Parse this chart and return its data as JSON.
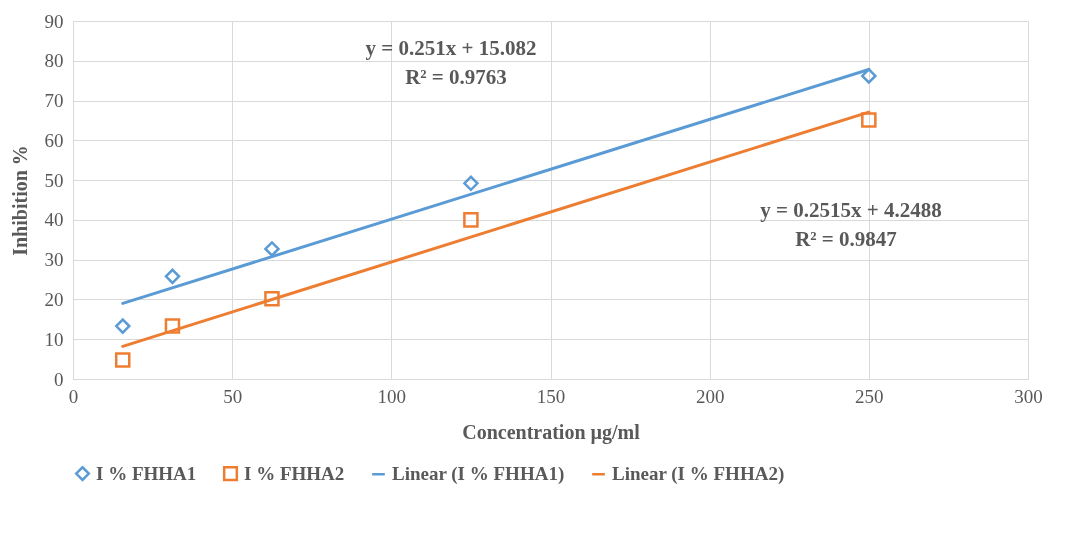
{
  "chart_data": {
    "type": "scatter",
    "xlabel": "Concentration µg/ml",
    "ylabel": "Inhibition %",
    "xlim": [
      0,
      300
    ],
    "xticks": [
      0,
      50,
      100,
      150,
      200,
      250,
      300
    ],
    "ylim": [
      0,
      90
    ],
    "yticks": [
      0,
      10,
      20,
      30,
      40,
      50,
      60,
      70,
      80,
      90
    ],
    "grid": true,
    "legend": "bottom",
    "series": [
      {
        "name": "I % FHHA1",
        "marker": "diamond",
        "color": "#5b9bd5",
        "x": [
          15.625,
          31.25,
          62.5,
          125,
          250
        ],
        "values": [
          13.3,
          25.8,
          32.7,
          49.2,
          76.2
        ]
      },
      {
        "name": "I % FHHA2",
        "marker": "square",
        "color": "#ed7d31",
        "x": [
          15.625,
          31.25,
          62.5,
          125,
          250
        ],
        "values": [
          4.8,
          13.3,
          20.2,
          40.0,
          65.1
        ]
      },
      {
        "name": "Linear (I % FHHA1)",
        "type": "line",
        "marker": "none",
        "color": "#5b9bd5",
        "x": [
          15.625,
          250
        ],
        "values": [
          19.0,
          77.8
        ]
      },
      {
        "name": "Linear (I % FHHA2)",
        "type": "line",
        "marker": "none",
        "color": "#ed7d31",
        "x": [
          15.625,
          250
        ],
        "values": [
          8.2,
          67.1
        ]
      }
    ],
    "annotations": [
      "y = 0.251x + 15.082",
      "R² = 0.9763",
      "y = 0.2515x + 4.2488",
      "R² = 0.9847"
    ]
  }
}
